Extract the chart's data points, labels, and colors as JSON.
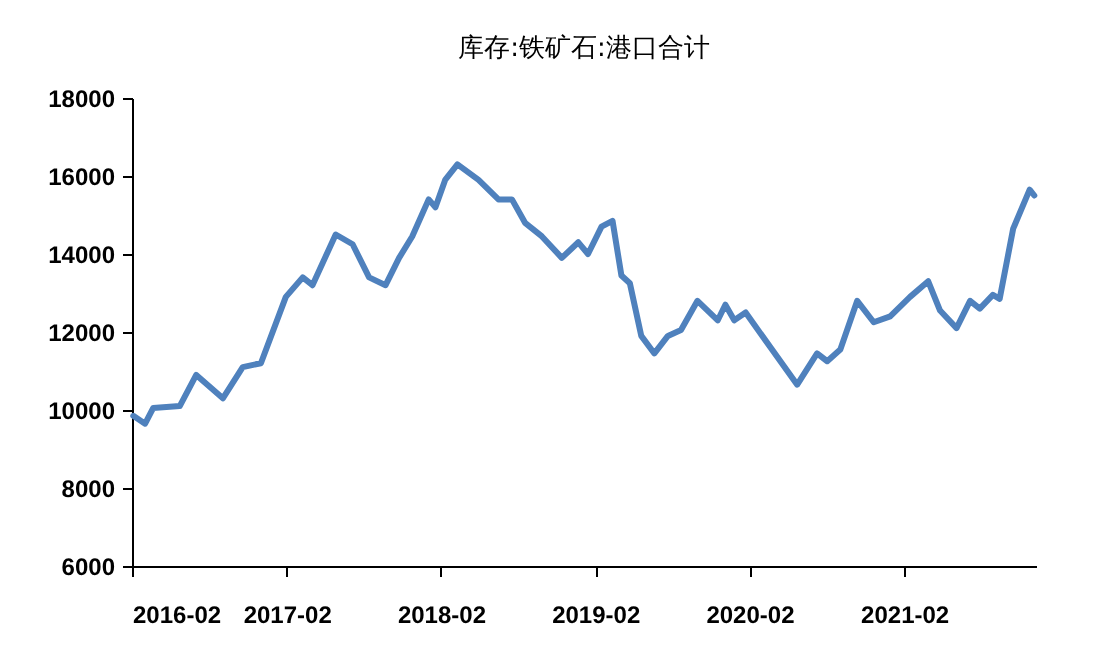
{
  "chart_data": {
    "type": "line",
    "title": "库存:铁矿石:港口合计",
    "x": [
      "2016-02-04",
      "2016-03-03",
      "2016-03-22",
      "2016-05-24",
      "2016-07-02",
      "2016-09-03",
      "2016-10-20",
      "2016-12-02",
      "2017-01-30",
      "2017-03-11",
      "2017-04-03",
      "2017-05-28",
      "2017-07-07",
      "2017-08-15",
      "2017-09-23",
      "2017-10-25",
      "2017-11-25",
      "2018-01-03",
      "2018-01-19",
      "2018-02-11",
      "2018-03-12",
      "2018-05-01",
      "2018-06-17",
      "2018-07-19",
      "2018-08-19",
      "2018-09-28",
      "2018-11-14",
      "2018-12-23",
      "2019-01-15",
      "2019-02-16",
      "2019-03-14",
      "2019-04-04",
      "2019-04-24",
      "2019-05-21",
      "2019-06-21",
      "2019-07-23",
      "2019-08-23",
      "2019-10-01",
      "2019-11-18",
      "2019-12-06",
      "2019-12-27",
      "2020-01-23",
      "2020-03-22",
      "2020-05-24",
      "2020-07-10",
      "2020-08-03",
      "2020-09-03",
      "2020-10-13",
      "2020-11-21",
      "2020-12-30",
      "2021-02-15",
      "2021-03-30",
      "2021-04-27",
      "2021-06-05",
      "2021-07-07",
      "2021-07-30",
      "2021-08-30",
      "2021-09-15",
      "2021-10-17",
      "2021-11-25",
      "2021-12-06"
    ],
    "series": [
      {
        "color": "#4f81bd",
        "values": [
          9850,
          9650,
          10050,
          10100,
          10900,
          10300,
          11100,
          11200,
          12900,
          13400,
          13200,
          14500,
          14250,
          13400,
          13200,
          13900,
          14450,
          15400,
          15200,
          15900,
          16300,
          15900,
          15400,
          15400,
          14800,
          14450,
          13900,
          14300,
          14000,
          14700,
          14850,
          13450,
          13250,
          11900,
          11450,
          11900,
          12050,
          12800,
          12300,
          12700,
          12300,
          12500,
          11600,
          10650,
          11450,
          11250,
          11550,
          12800,
          12250,
          12400,
          12900,
          13300,
          12550,
          12100,
          12800,
          12600,
          12950,
          12850,
          14650,
          15650,
          15500
        ]
      }
    ],
    "xlim": [
      "2016-02-01",
      "2021-12-10"
    ],
    "xticks": [
      "2016-02",
      "2017-02",
      "2018-02",
      "2019-02",
      "2020-02",
      "2021-02"
    ],
    "ylim": [
      6000,
      18000
    ],
    "yticks": [
      6000,
      8000,
      10000,
      12000,
      14000,
      16000,
      18000
    ],
    "grid": false,
    "marker": "none",
    "line_style": "solid"
  }
}
